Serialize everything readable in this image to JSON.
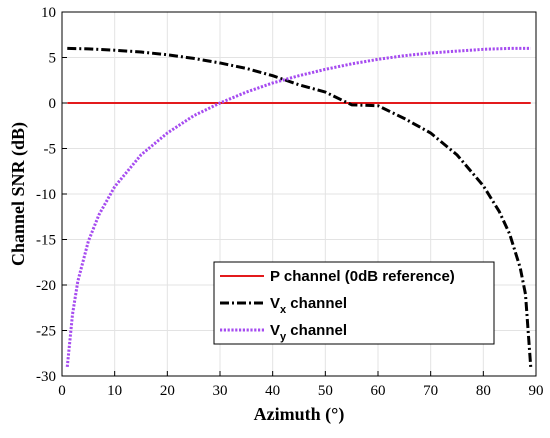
{
  "chart_data": {
    "type": "line",
    "xlabel": "Azimuth (°)",
    "ylabel": "Channel SNR (dB)",
    "xlim": [
      0,
      90
    ],
    "ylim": [
      -30,
      10
    ],
    "xticks": [
      0,
      10,
      20,
      30,
      40,
      50,
      60,
      70,
      80,
      90
    ],
    "yticks": [
      10,
      5,
      0,
      -5,
      -10,
      -15,
      -20,
      -25,
      -30
    ],
    "grid": true,
    "legend_position": "bottom-right",
    "series": [
      {
        "name": "P channel   (0dB reference)",
        "legend_main": "P channel   (0dB reference)",
        "legend_sub": "",
        "legend_tail": "",
        "color": "#e31a1c",
        "style": "solid",
        "x": [
          1,
          89
        ],
        "y": [
          0,
          0
        ]
      },
      {
        "name": "Vx channel",
        "legend_main": "V",
        "legend_sub": "x",
        "legend_tail": " channel",
        "color": "#000000",
        "style": "dashdot",
        "x": [
          1,
          5,
          10,
          15,
          20,
          25,
          30,
          35,
          40,
          45,
          50,
          55,
          60,
          65,
          70,
          75,
          80,
          83,
          85,
          87,
          88,
          89
        ],
        "y": [
          6.0,
          5.95,
          5.8,
          5.6,
          5.3,
          4.9,
          4.4,
          3.8,
          3.0,
          2.0,
          1.2,
          -0.2,
          -0.3,
          -1.7,
          -3.3,
          -5.7,
          -9.1,
          -11.9,
          -14.4,
          -18.1,
          -21.0,
          -29.0
        ]
      },
      {
        "name": "Vy channel",
        "legend_main": "V",
        "legend_sub": "y",
        "legend_tail": " channel",
        "color": "#a64cf0",
        "style": "dotted",
        "x": [
          1,
          2,
          3,
          5,
          7,
          10,
          15,
          20,
          25,
          30,
          35,
          40,
          45,
          50,
          55,
          60,
          65,
          70,
          75,
          80,
          85,
          89
        ],
        "y": [
          -29.0,
          -23.2,
          -19.6,
          -15.2,
          -12.3,
          -9.2,
          -5.7,
          -3.3,
          -1.4,
          0.0,
          1.2,
          2.2,
          3.0,
          3.7,
          4.3,
          4.8,
          5.2,
          5.5,
          5.7,
          5.9,
          6.0,
          6.0
        ]
      }
    ]
  }
}
